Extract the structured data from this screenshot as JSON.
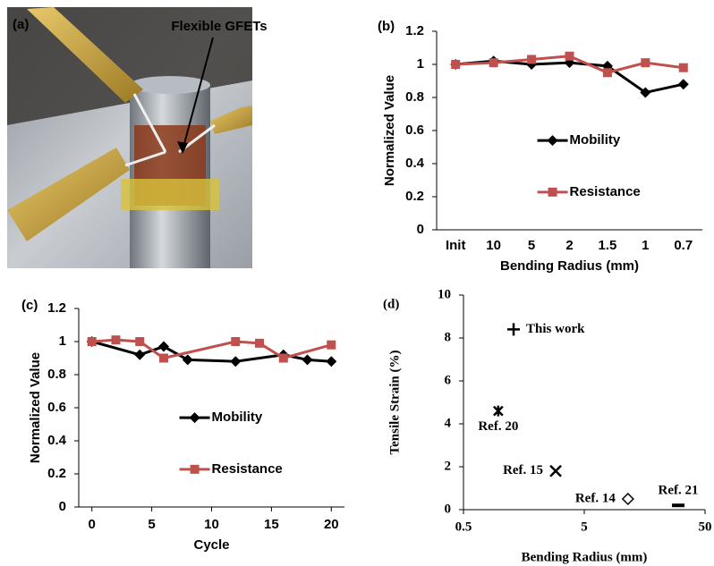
{
  "photo": {
    "label": "(a)",
    "annotation": "Flexible GFETs"
  },
  "chart_data": [
    {
      "type": "line",
      "panel": "(b)",
      "xlabel": "Bending Radius (mm)",
      "ylabel": "Normalized Value",
      "categories": [
        "Init",
        "10",
        "5",
        "2",
        "1.5",
        "1",
        "0.7"
      ],
      "series": [
        {
          "name": "Mobility",
          "color": "#000000",
          "marker": "diamond",
          "values": [
            1.0,
            1.02,
            1.0,
            1.01,
            0.99,
            0.83,
            0.88
          ]
        },
        {
          "name": "Resistance",
          "color": "#c0504d",
          "marker": "square",
          "values": [
            1.0,
            1.01,
            1.03,
            1.05,
            0.95,
            1.01,
            0.98
          ]
        }
      ],
      "ylim": [
        0,
        1.2
      ],
      "yticks": [
        0,
        0.2,
        0.4,
        0.6,
        0.8,
        1,
        1.2
      ],
      "legend": "center-right"
    },
    {
      "type": "line",
      "panel": "(c)",
      "xlabel": "Cycle",
      "ylabel": "Normalized Value",
      "series": [
        {
          "name": "Mobility",
          "color": "#000000",
          "marker": "diamond",
          "x": [
            0,
            4,
            6,
            8,
            12,
            16,
            18,
            20
          ],
          "values": [
            1.0,
            0.92,
            0.97,
            0.89,
            0.88,
            0.92,
            0.89,
            0.88
          ]
        },
        {
          "name": "Resistance",
          "color": "#c0504d",
          "marker": "square",
          "x": [
            0,
            2,
            4,
            6,
            12,
            14,
            16,
            20
          ],
          "values": [
            1.0,
            1.01,
            1.0,
            0.9,
            1.0,
            0.99,
            0.9,
            0.98
          ]
        }
      ],
      "xlim": [
        -1.1,
        21.1
      ],
      "xticks": [
        0,
        5,
        10,
        15,
        20
      ],
      "ylim": [
        0,
        1.2
      ],
      "yticks": [
        0,
        0.2,
        0.4,
        0.6,
        0.8,
        1,
        1.2
      ],
      "legend": "center-right"
    },
    {
      "type": "scatter",
      "panel": "(d)",
      "xlabel": "Bending Radius (mm)",
      "ylabel": "Tensile Strain (%)",
      "labels": [
        "This work",
        "Ref. 20",
        "Ref. 15",
        "Ref. 14",
        "Ref. 21"
      ],
      "markers": [
        "plus",
        "asterisk",
        "x",
        "diamond",
        "dash"
      ],
      "x": [
        1.3,
        0.97,
        2.9,
        11.5,
        30
      ],
      "values": [
        8.4,
        4.6,
        1.8,
        0.5,
        0.2
      ],
      "color": "#000000",
      "xscale": "log",
      "xlim": [
        0.5,
        50
      ],
      "xticks": [
        0.5,
        5,
        50
      ],
      "ylim": [
        0,
        10
      ],
      "yticks": [
        0,
        2,
        4,
        6,
        8,
        10
      ]
    }
  ]
}
